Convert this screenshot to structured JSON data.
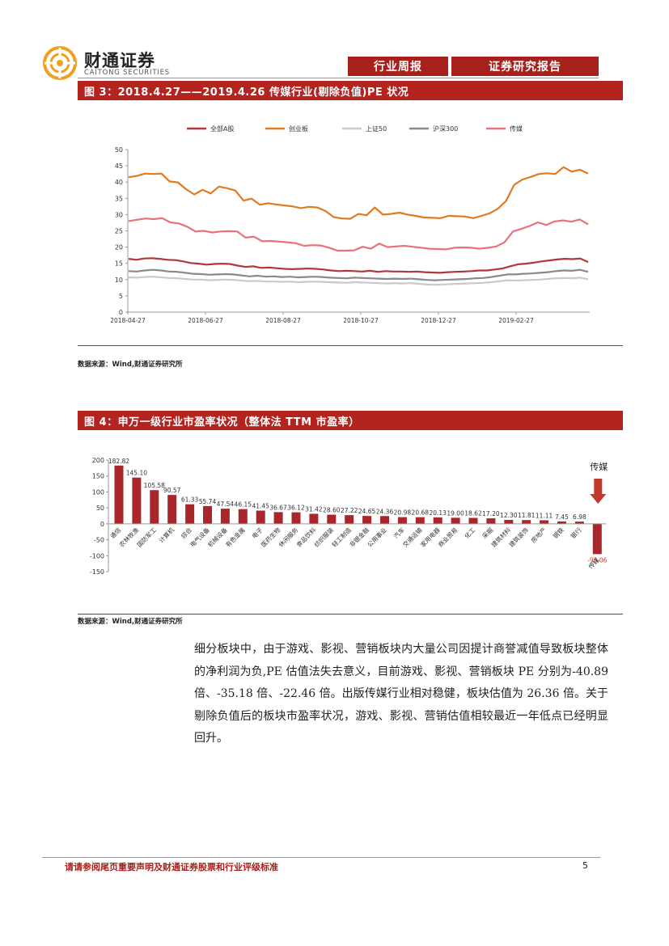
{
  "brand": {
    "name_cn": "财通证券",
    "name_en": "CAITONG SECURITIES",
    "color": "#a8201b",
    "logo_color": "#f0a020"
  },
  "header": {
    "tab1": "行业周报",
    "tab2": "证券研究报告"
  },
  "fig3": {
    "title": "图 3：2018.4.27——2019.4.26 传媒行业(剔除负值)PE 状况",
    "source": "数据来源：Wind,财通证券研究所"
  },
  "fig4": {
    "title": "图 4：申万一级行业市盈率状况（整体法 TTM 市盈率）",
    "source": "数据来源：Wind,财通证券研究所",
    "callout": "传媒"
  },
  "chart_data": [
    {
      "type": "line",
      "title": "",
      "xlabel": "",
      "ylabel": "",
      "ylim": [
        0,
        50
      ],
      "yticks": [
        0,
        5,
        10,
        15,
        20,
        25,
        30,
        35,
        40,
        45,
        50
      ],
      "xtick_labels": [
        "2018-04-27",
        "2018-06-27",
        "2018-08-27",
        "2018-10-27",
        "2018-12-27",
        "2019-02-27"
      ],
      "legend_position": "top",
      "grid": false,
      "series": [
        {
          "name": "全部A股",
          "color": "#b3363a",
          "values": [
            16.4,
            16.1,
            16.5,
            16.6,
            16.4,
            16.1,
            16.0,
            15.6,
            15.1,
            14.9,
            14.6,
            14.8,
            14.9,
            14.8,
            14.3,
            13.9,
            14.1,
            13.6,
            13.7,
            13.5,
            13.3,
            13.2,
            13.3,
            13.4,
            13.3,
            13.1,
            12.8,
            12.6,
            12.7,
            12.6,
            12.5,
            12.7,
            12.4,
            12.6,
            12.5,
            12.5,
            12.4,
            12.5,
            12.3,
            12.2,
            12.1,
            12.3,
            12.4,
            12.5,
            12.6,
            12.8,
            12.8,
            13.1,
            13.4,
            14.1,
            14.7,
            14.9,
            15.2,
            15.6,
            15.9,
            16.2,
            16.4,
            16.3,
            16.5,
            15.4
          ]
        },
        {
          "name": "创业板",
          "color": "#e07a1f",
          "values": [
            41.5,
            41.9,
            42.6,
            42.5,
            42.6,
            40.2,
            39.9,
            37.8,
            36.2,
            37.6,
            36.5,
            38.6,
            38.1,
            37.4,
            34.3,
            34.9,
            33.0,
            33.5,
            33.1,
            32.8,
            32.5,
            32.0,
            32.4,
            32.2,
            31.1,
            29.2,
            28.8,
            28.7,
            30.2,
            29.8,
            32.2,
            30.0,
            30.2,
            30.6,
            30.0,
            29.6,
            29.1,
            29.0,
            28.9,
            29.6,
            29.5,
            29.4,
            28.9,
            29.6,
            30.4,
            31.8,
            34.2,
            39.2,
            40.8,
            41.6,
            42.5,
            42.7,
            42.5,
            44.6,
            43.2,
            43.8,
            42.6
          ]
        },
        {
          "name": "上证50",
          "color": "#c9c9c9",
          "values": [
            10.7,
            10.6,
            10.8,
            10.9,
            10.7,
            10.5,
            10.4,
            10.2,
            10.0,
            10.0,
            9.8,
            9.9,
            10.0,
            9.9,
            9.7,
            9.5,
            9.6,
            9.4,
            9.4,
            9.3,
            9.4,
            9.2,
            9.3,
            9.4,
            9.3,
            9.2,
            9.1,
            9.0,
            9.2,
            9.1,
            9.0,
            8.9,
            8.8,
            8.9,
            8.8,
            8.9,
            8.7,
            8.5,
            8.4,
            8.5,
            8.6,
            8.7,
            8.8,
            8.9,
            9.0,
            9.2,
            9.5,
            9.8,
            9.7,
            9.8,
            9.9,
            10.0,
            10.2,
            10.4,
            10.5,
            10.4,
            10.6,
            10.1
          ]
        },
        {
          "name": "沪深300",
          "color": "#8a8a8a",
          "values": [
            12.6,
            12.5,
            12.8,
            13.0,
            12.8,
            12.5,
            12.4,
            12.1,
            11.8,
            11.7,
            11.5,
            11.6,
            11.7,
            11.6,
            11.3,
            11.0,
            11.2,
            10.9,
            11.0,
            10.8,
            10.9,
            10.7,
            10.8,
            10.9,
            10.8,
            10.6,
            10.5,
            10.4,
            10.6,
            10.5,
            10.4,
            10.3,
            10.2,
            10.3,
            10.2,
            10.3,
            10.1,
            9.9,
            9.8,
            9.9,
            10.0,
            10.1,
            10.2,
            10.4,
            10.5,
            10.8,
            11.2,
            11.6,
            11.6,
            11.8,
            11.9,
            12.1,
            12.3,
            12.6,
            12.8,
            12.7,
            13.0,
            12.4
          ]
        },
        {
          "name": "传媒",
          "color": "#e8717b",
          "values": [
            28.0,
            28.4,
            28.8,
            28.6,
            28.9,
            27.6,
            27.3,
            26.3,
            24.8,
            25.0,
            24.5,
            24.8,
            24.9,
            24.8,
            22.9,
            23.2,
            21.8,
            21.9,
            21.7,
            21.5,
            21.2,
            20.4,
            20.6,
            20.5,
            19.8,
            18.9,
            18.9,
            19.0,
            20.1,
            19.5,
            21.1,
            20.0,
            20.2,
            20.4,
            20.1,
            19.8,
            19.5,
            19.4,
            19.3,
            19.8,
            19.9,
            19.8,
            19.5,
            19.8,
            20.2,
            21.5,
            24.8,
            25.6,
            26.5,
            27.6,
            26.8,
            27.9,
            28.2,
            27.8,
            28.5,
            27.0
          ]
        }
      ]
    },
    {
      "type": "bar",
      "title": "",
      "xlabel": "",
      "ylabel": "",
      "ylim": [
        -150,
        200
      ],
      "yticks": [
        -150,
        -100,
        -50,
        0,
        50,
        100,
        150,
        200
      ],
      "grid": false,
      "categories": [
        "通信",
        "农林牧渔",
        "国防军工",
        "计算机",
        "综合",
        "电气设备",
        "机械设备",
        "有色金属",
        "电子",
        "医药生物",
        "休闲服务",
        "食品饮料",
        "纺织服装",
        "轻工制造",
        "非银金融",
        "公用事业",
        "汽车",
        "交通运输",
        "家用电器",
        "商业贸易",
        "化工",
        "采掘",
        "建筑材料",
        "建筑装饰",
        "房地产",
        "钢铁",
        "银行",
        "传媒"
      ],
      "values": [
        182.82,
        145.1,
        105.58,
        90.57,
        61.33,
        55.74,
        47.54,
        46.15,
        41.45,
        36.67,
        36.12,
        31.42,
        28.6,
        27.22,
        24.65,
        24.36,
        20.98,
        20.68,
        20.13,
        19.0,
        18.62,
        17.2,
        12.3,
        11.81,
        11.11,
        7.45,
        6.98,
        -95.06
      ],
      "value_labels": [
        "182.82",
        "145.10",
        "105.58",
        "90.57",
        "61.33",
        "55.74",
        "47.54",
        "46.15",
        "41.45",
        "36.67",
        "36.12",
        "31.42",
        "28.60",
        "27.22",
        "24.65",
        "24.36",
        "20.98",
        "20.68",
        "20.13",
        "19.00",
        "18.62",
        "17.20",
        "12.30",
        "11.81",
        "11.11",
        "7.45",
        "6.98",
        "-95.06"
      ],
      "bar_color": "#a9262b"
    }
  ],
  "body": {
    "paragraph": "细分板块中，由于游戏、影视、营销板块内大量公司因提计商誉减值导致板块整体的净利润为负,PE 估值法失去意义，目前游戏、影视、营销板块 PE 分别为-40.89 倍、-35.18 倍、-22.46 倍。出版传媒行业相对稳健，板块估值为 26.36 倍。关于剔除负值后的板块市盈率状况，游戏、影视、营销估值相较最近一年低点已经明显回升。"
  },
  "footer": {
    "disclaimer": "请请参阅尾页重要声明及财通证券股票和行业评级标准",
    "page": "5"
  }
}
